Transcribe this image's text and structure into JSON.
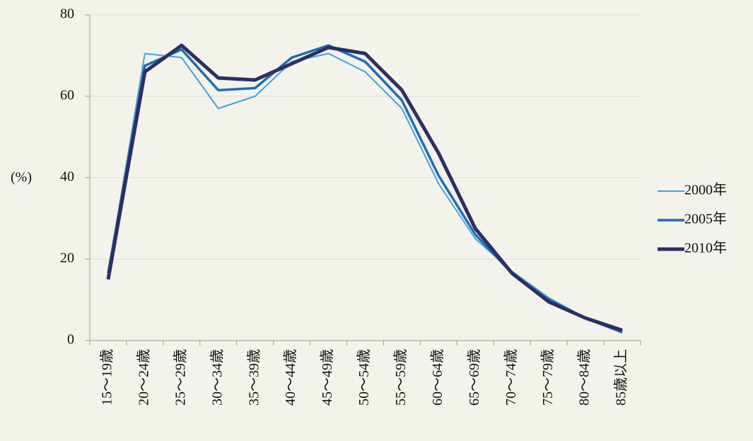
{
  "chart_data": {
    "type": "line",
    "y_label": "(%)",
    "categories": [
      "15～19歳",
      "20～24歳",
      "25～29歳",
      "30～34歳",
      "35～39歳",
      "40～44歳",
      "45～49歳",
      "50～54歳",
      "55～59歳",
      "60～64歳",
      "65～69歳",
      "70～74歳",
      "75～79歳",
      "80～84歳",
      "85歳以上"
    ],
    "series": [
      {
        "name": "2000年",
        "color": "#41a4dc",
        "width": 2,
        "values": [
          16.5,
          70.5,
          69.5,
          57,
          60,
          68.5,
          70.5,
          66,
          57,
          38.5,
          25,
          17,
          10.5,
          5.5,
          2
        ]
      },
      {
        "name": "2005年",
        "color": "#1f6db5",
        "width": 3.5,
        "values": [
          16.5,
          67.5,
          71.5,
          61.5,
          62,
          69.5,
          72.5,
          68.5,
          59,
          40.5,
          26,
          16.5,
          10,
          5.5,
          2
        ]
      },
      {
        "name": "2010年",
        "color": "#2b2f64",
        "width": 5,
        "values": [
          15,
          66,
          72.5,
          64.5,
          64,
          68,
          72,
          70.5,
          61.5,
          46,
          27.5,
          16.5,
          9.5,
          5.5,
          2.5
        ]
      }
    ],
    "ylim": [
      0,
      80
    ],
    "yticks": [
      0,
      20,
      40,
      60,
      80
    ],
    "grid": true,
    "legend": "right"
  }
}
